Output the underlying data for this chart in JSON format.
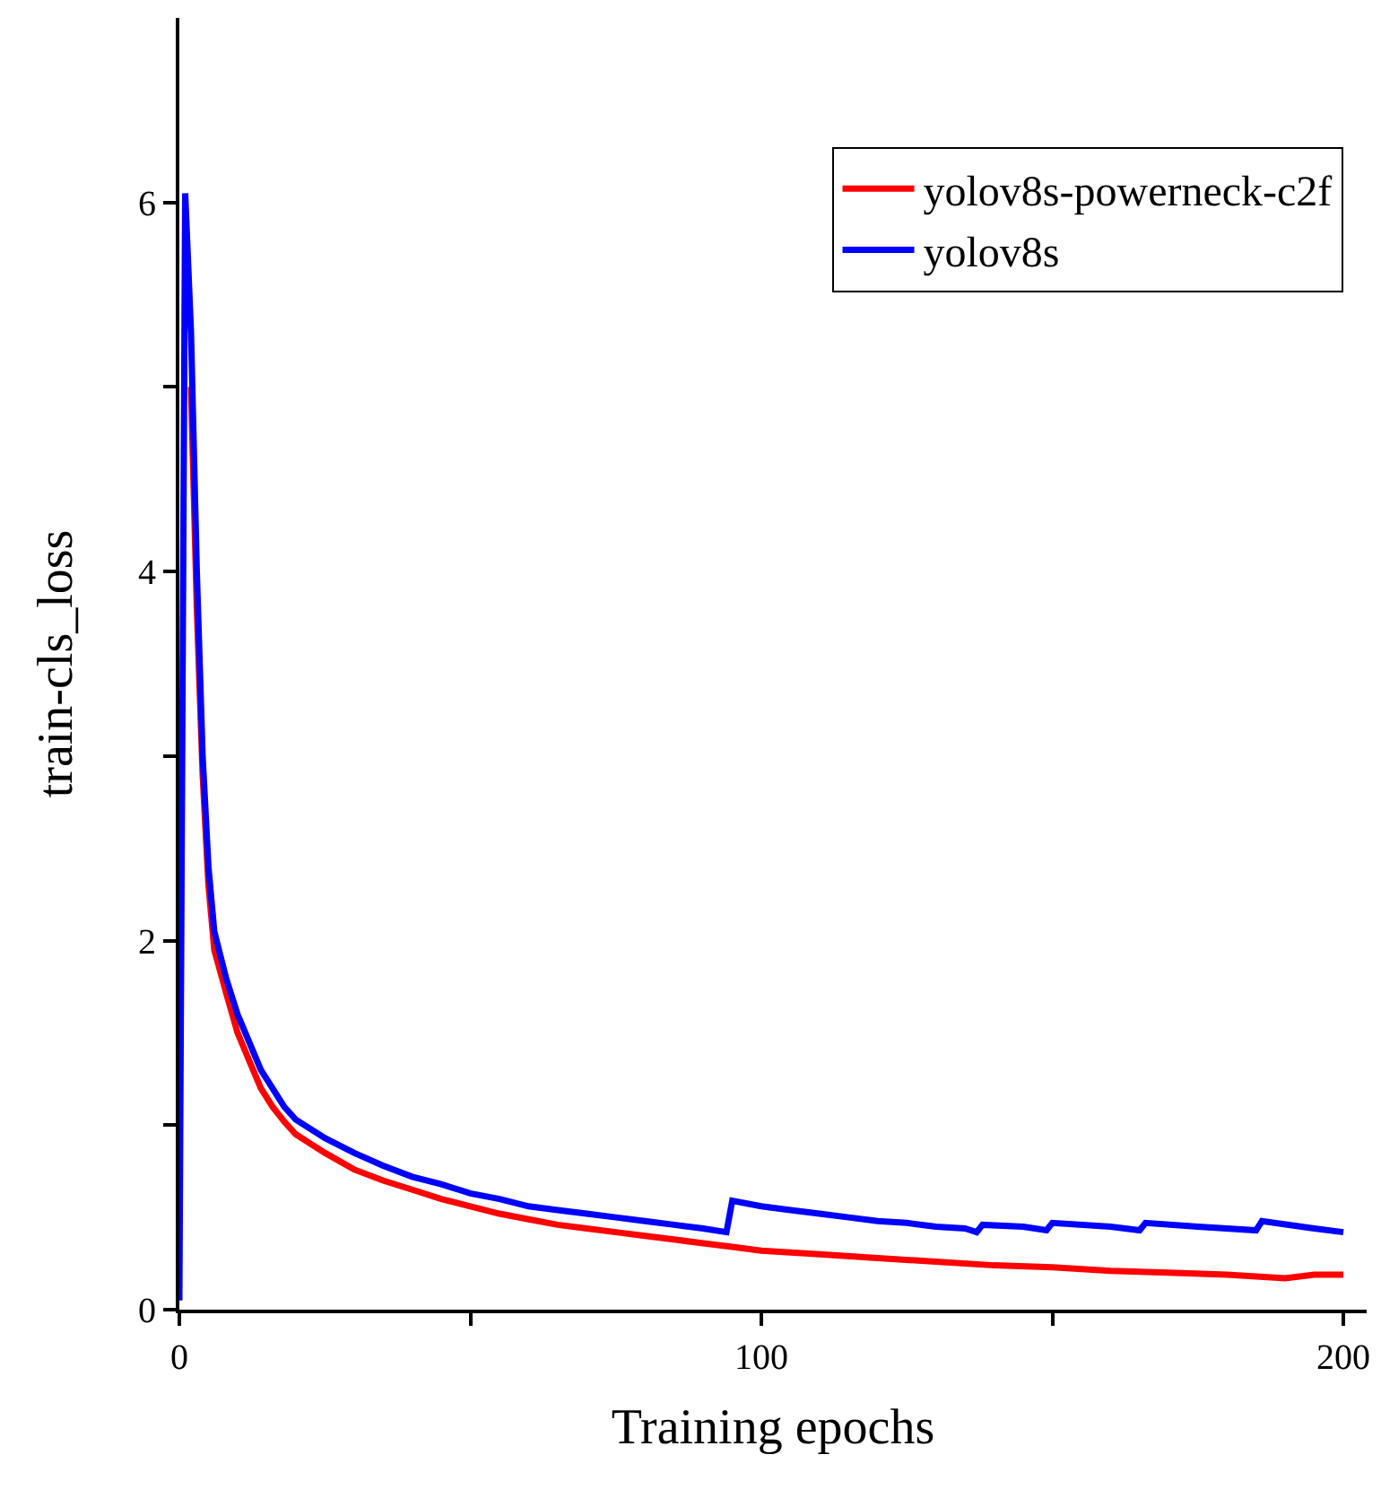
{
  "chart_data": {
    "type": "line",
    "xlabel": "Training epochs",
    "ylabel": "train-cls_loss",
    "xlim": [
      0,
      204
    ],
    "xticks": [
      0,
      {
        "value": 50,
        "label": null
      },
      100,
      {
        "value": 150,
        "label": null
      },
      200
    ],
    "ylim": [
      0,
      7
    ],
    "yticks": [
      0,
      {
        "value": 1,
        "label": null
      },
      2,
      {
        "value": 3,
        "label": null
      },
      4,
      {
        "value": 5,
        "label": null
      },
      6
    ],
    "legend": "top right",
    "marker": "none",
    "line_style": "solid",
    "series": [
      {
        "name": "yolov8s-powerneck-c2f",
        "color": "#ff0000",
        "x": [
          2,
          3,
          4,
          5,
          6,
          8,
          10,
          12,
          14,
          16,
          18,
          20,
          25,
          30,
          35,
          40,
          45,
          50,
          55,
          60,
          65,
          70,
          75,
          80,
          85,
          90,
          95,
          100,
          110,
          120,
          130,
          140,
          150,
          160,
          170,
          180,
          190,
          195,
          200
        ],
        "values": [
          5.0,
          3.8,
          2.9,
          2.3,
          1.95,
          1.72,
          1.5,
          1.35,
          1.2,
          1.1,
          1.02,
          0.95,
          0.85,
          0.76,
          0.7,
          0.65,
          0.6,
          0.56,
          0.52,
          0.49,
          0.46,
          0.44,
          0.42,
          0.4,
          0.38,
          0.36,
          0.34,
          0.32,
          0.3,
          0.28,
          0.26,
          0.24,
          0.23,
          0.21,
          0.2,
          0.19,
          0.17,
          0.19,
          0.19
        ]
      },
      {
        "name": "yolov8s",
        "color": "#0000ff",
        "x": [
          0,
          1,
          2,
          3,
          4,
          5,
          6,
          8,
          10,
          12,
          14,
          16,
          18,
          20,
          25,
          30,
          35,
          40,
          45,
          50,
          55,
          60,
          65,
          70,
          75,
          80,
          85,
          90,
          94,
          95,
          100,
          105,
          110,
          115,
          120,
          125,
          130,
          135,
          137,
          138,
          145,
          149,
          150,
          160,
          165,
          166,
          175,
          185,
          186,
          195,
          200
        ],
        "values": [
          0.05,
          6.05,
          5.3,
          4.0,
          3.0,
          2.4,
          2.05,
          1.8,
          1.6,
          1.45,
          1.3,
          1.2,
          1.1,
          1.03,
          0.93,
          0.85,
          0.78,
          0.72,
          0.68,
          0.63,
          0.6,
          0.56,
          0.54,
          0.52,
          0.5,
          0.48,
          0.46,
          0.44,
          0.42,
          0.59,
          0.56,
          0.54,
          0.52,
          0.5,
          0.48,
          0.47,
          0.45,
          0.44,
          0.42,
          0.46,
          0.45,
          0.43,
          0.47,
          0.45,
          0.43,
          0.47,
          0.45,
          0.43,
          0.48,
          0.44,
          0.42
        ]
      }
    ]
  }
}
